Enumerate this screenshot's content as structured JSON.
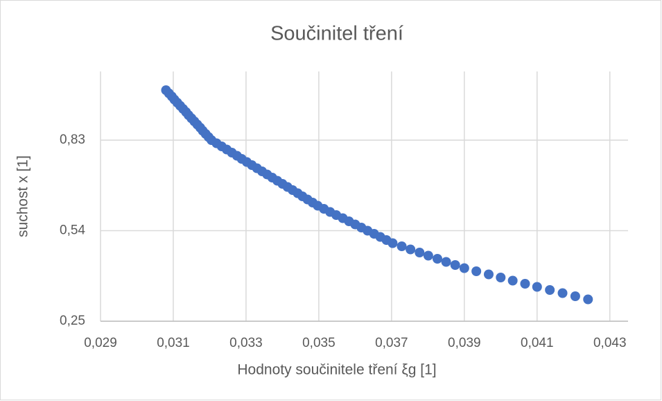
{
  "chart_data": {
    "type": "scatter",
    "title": "Součinitel tření",
    "x_label": "Hodnoty součinitele tření ξg [1]",
    "y_label": "suchost x [1]",
    "color": "#4472c4",
    "grid": true,
    "xlim": [
      0.029,
      0.0435
    ],
    "ylim": [
      0.25,
      1.05
    ],
    "xticks": [
      {
        "value": 0.029,
        "label": "0,029"
      },
      {
        "value": 0.031,
        "label": "0,031"
      },
      {
        "value": 0.033,
        "label": "0,033"
      },
      {
        "value": 0.035,
        "label": "0,035"
      },
      {
        "value": 0.037,
        "label": "0,037"
      },
      {
        "value": 0.039,
        "label": "0,039"
      },
      {
        "value": 0.041,
        "label": "0,041"
      },
      {
        "value": 0.043,
        "label": "0,043"
      }
    ],
    "yticks": [
      {
        "value": 0.25,
        "label": "0,25"
      },
      {
        "value": 0.54,
        "label": "0,54"
      },
      {
        "value": 0.83,
        "label": "0,83"
      }
    ],
    "x": [
      0.0308,
      0.03088,
      0.03096,
      0.03103,
      0.03111,
      0.03119,
      0.03127,
      0.03135,
      0.03142,
      0.0315,
      0.03158,
      0.03166,
      0.03174,
      0.03181,
      0.03189,
      0.03197,
      0.03205,
      0.03219,
      0.03233,
      0.03247,
      0.03261,
      0.03275,
      0.03288,
      0.03302,
      0.03316,
      0.0333,
      0.03344,
      0.03358,
      0.03372,
      0.03386,
      0.034,
      0.03414,
      0.03428,
      0.03442,
      0.03455,
      0.03469,
      0.03483,
      0.03497,
      0.03514,
      0.03531,
      0.03548,
      0.03566,
      0.03583,
      0.036,
      0.03617,
      0.03634,
      0.03652,
      0.03669,
      0.03686,
      0.03703,
      0.03728,
      0.03752,
      0.03777,
      0.03801,
      0.03826,
      0.0385,
      0.03875,
      0.039,
      0.03933,
      0.03967,
      0.04,
      0.04033,
      0.04067,
      0.041,
      0.04135,
      0.0417,
      0.04205,
      0.0424
    ],
    "values": [
      0.99,
      0.98,
      0.97,
      0.96,
      0.95,
      0.94,
      0.93,
      0.92,
      0.91,
      0.9,
      0.89,
      0.88,
      0.87,
      0.86,
      0.85,
      0.84,
      0.83,
      0.82,
      0.81,
      0.8,
      0.79,
      0.78,
      0.77,
      0.76,
      0.75,
      0.74,
      0.73,
      0.72,
      0.71,
      0.7,
      0.69,
      0.68,
      0.67,
      0.66,
      0.65,
      0.64,
      0.63,
      0.62,
      0.61,
      0.6,
      0.59,
      0.58,
      0.57,
      0.56,
      0.55,
      0.54,
      0.53,
      0.52,
      0.51,
      0.5,
      0.49,
      0.48,
      0.47,
      0.46,
      0.45,
      0.44,
      0.43,
      0.42,
      0.41,
      0.4,
      0.39,
      0.38,
      0.37,
      0.36,
      0.35,
      0.34,
      0.33,
      0.32
    ]
  }
}
